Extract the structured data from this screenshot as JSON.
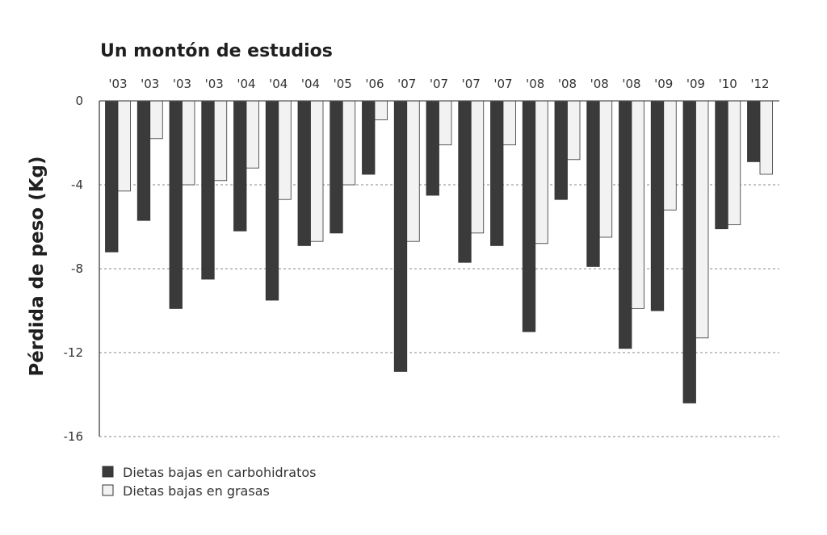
{
  "chart_data": {
    "type": "bar",
    "title": "Un montón de estudios",
    "xlabel": "",
    "ylabel": "Pérdida de peso (Kg)",
    "ylim": [
      -16,
      0
    ],
    "yticks": [
      0,
      -4,
      -8,
      -12,
      -16
    ],
    "grid": "dashed horizontal",
    "legend_position": "bottom-left",
    "categories": [
      "'03",
      "'03",
      "'03",
      "'03",
      "'04",
      "'04",
      "'04",
      "'05",
      "'06",
      "'07",
      "'07",
      "'07",
      "'07",
      "'08",
      "'08",
      "'08",
      "'08",
      "'09",
      "'09",
      "'10",
      "'12"
    ],
    "series": [
      {
        "name": "Dietas bajas en carbohidratos",
        "color": "#3a3a3a",
        "values": [
          -7.2,
          -5.7,
          -9.9,
          -8.5,
          -6.2,
          -9.5,
          -6.9,
          -6.3,
          -3.5,
          -12.9,
          -4.5,
          -7.7,
          -6.9,
          -11.0,
          -4.7,
          -7.9,
          -11.8,
          -10.0,
          -14.4,
          -6.1,
          -2.9
        ]
      },
      {
        "name": "Dietas bajas en grasas",
        "color": "#f2f2f2",
        "values": [
          -4.3,
          -1.8,
          -4.0,
          -3.8,
          -3.2,
          -4.7,
          -6.7,
          -4.0,
          -0.9,
          -6.7,
          -2.1,
          -6.3,
          -2.1,
          -6.8,
          -2.8,
          -6.5,
          -9.9,
          -5.2,
          -11.3,
          -5.9,
          -3.5
        ]
      }
    ]
  }
}
